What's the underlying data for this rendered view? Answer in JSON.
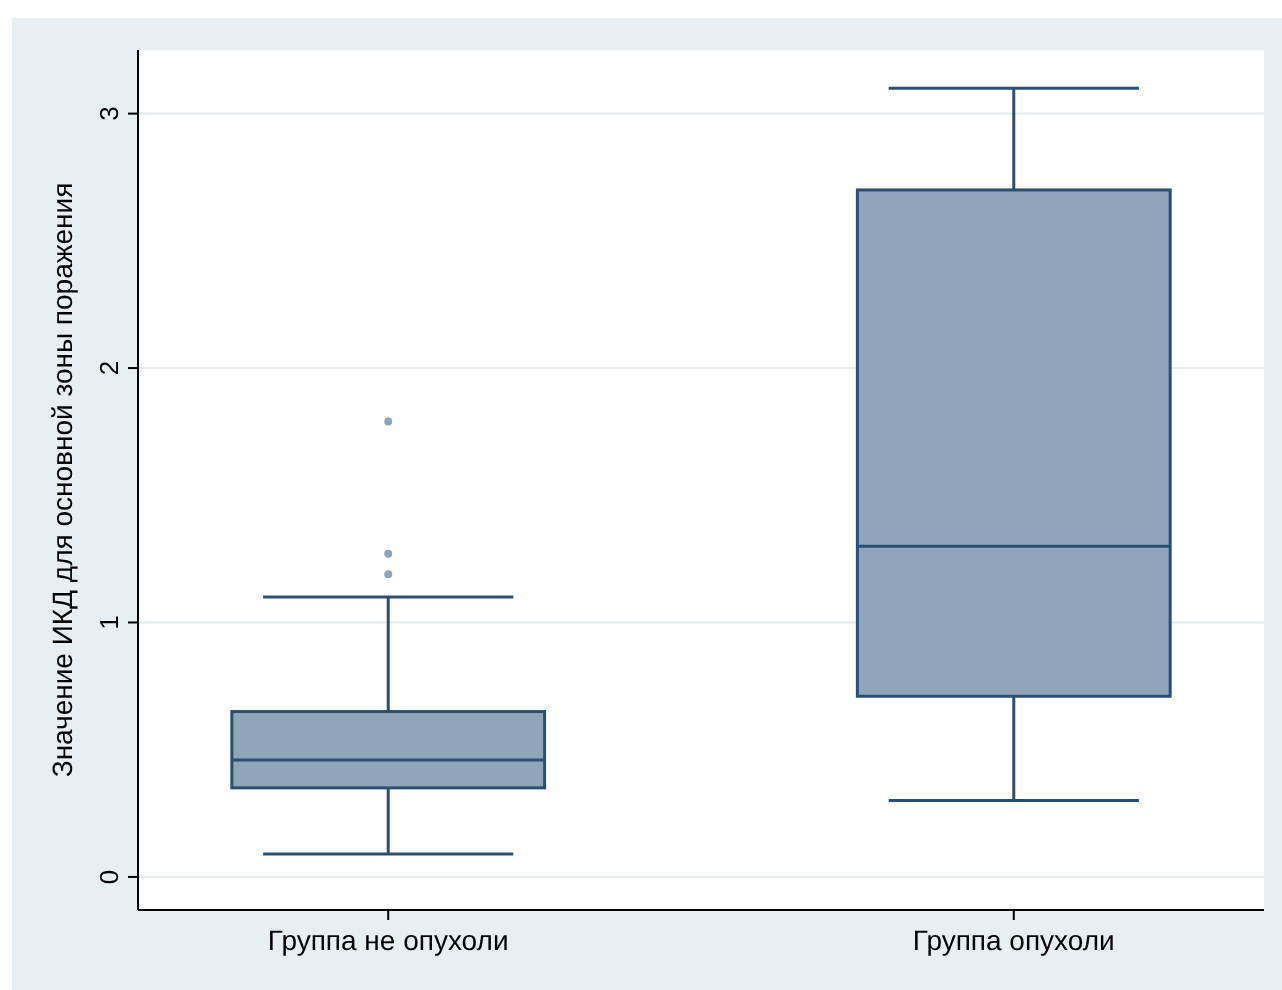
{
  "chart_data": {
    "type": "box",
    "ylabel": "Значение ИКД для основной зоны поражения",
    "categories": [
      "Группа не опухоли",
      "Группа опухоли"
    ],
    "boxes": [
      {
        "low": 0.09,
        "q1": 0.35,
        "median": 0.46,
        "q3": 0.65,
        "high": 1.1,
        "outliers": [
          1.79,
          1.27,
          1.19
        ]
      },
      {
        "low": 0.3,
        "q1": 0.71,
        "median": 1.3,
        "q3": 2.7,
        "high": 3.1
      }
    ],
    "color": "#8fa5ba",
    "ylim": [
      -0.13,
      3.25
    ],
    "yticks": [
      0,
      1,
      2,
      3
    ],
    "grid": "y"
  }
}
